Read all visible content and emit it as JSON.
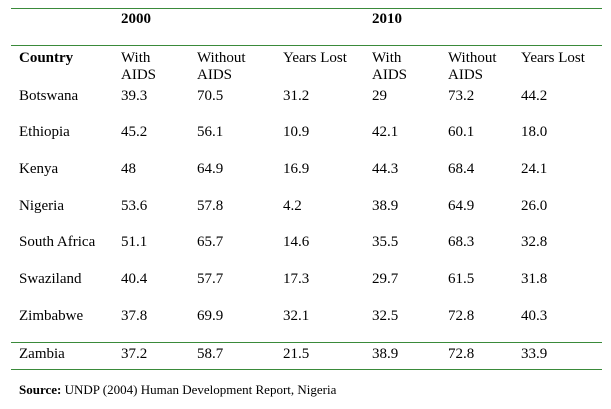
{
  "table": {
    "group_headers": [
      "2000",
      "2010"
    ],
    "country_header": "Country",
    "sub_headers": [
      [
        "With",
        "AIDS"
      ],
      [
        "Without",
        "AIDS"
      ],
      [
        "Years Lost"
      ],
      [
        "With",
        "AIDS"
      ],
      [
        "Without",
        "AIDS"
      ],
      [
        "Years Lost"
      ]
    ],
    "rows": [
      [
        "Botswana",
        "39.3",
        "70.5",
        "31.2",
        "29",
        "73.2",
        "44.2"
      ],
      [
        "Ethiopia",
        "45.2",
        "56.1",
        "10.9",
        "42.1",
        "60.1",
        "18.0"
      ],
      [
        "Kenya",
        "48",
        "64.9",
        "16.9",
        "44.3",
        "68.4",
        "24.1"
      ],
      [
        "Nigeria",
        "53.6",
        "57.8",
        "4.2",
        "38.9",
        "64.9",
        "26.0"
      ],
      [
        "South Africa",
        "51.1",
        "65.7",
        "14.6",
        "35.5",
        "68.3",
        "32.8"
      ],
      [
        "Swaziland",
        "40.4",
        "57.7",
        "17.3",
        "29.7",
        "61.5",
        "31.8"
      ],
      [
        "Zimbabwe",
        "37.8",
        "69.9",
        "32.1",
        "32.5",
        "72.8",
        "40.3"
      ],
      [
        "Zambia",
        "37.2",
        "58.7",
        "21.5",
        "38.9",
        "72.8",
        "33.9"
      ]
    ],
    "rule_color": "#3a8a3a"
  },
  "source": {
    "label": "Source:",
    "text": " UNDP (2004) Human Development Report, Nigeria"
  }
}
